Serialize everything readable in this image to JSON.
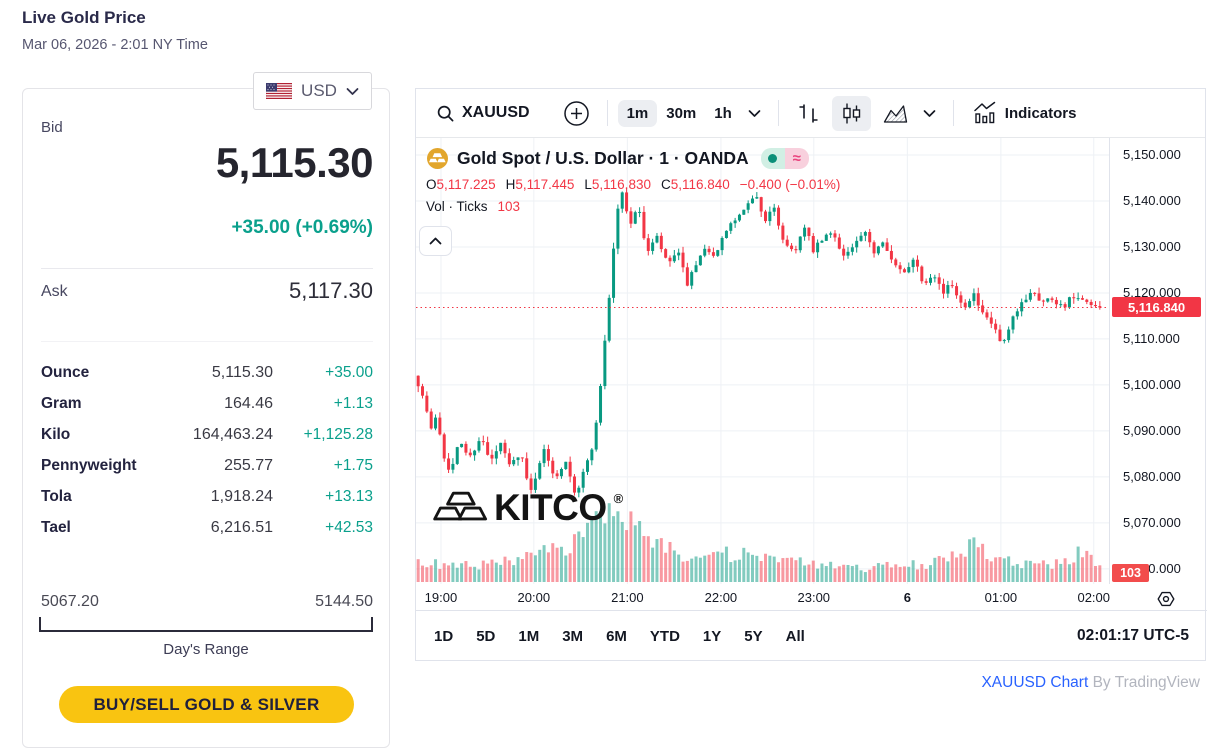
{
  "page": {
    "title": "Live Gold Price",
    "subtitle": "Mar 06, 2026 - 2:01 NY Time"
  },
  "currency": {
    "selected": "USD"
  },
  "quote": {
    "bid_label": "Bid",
    "bid": "5,115.30",
    "change": "+35.00 (+0.69%)",
    "ask_label": "Ask",
    "ask": "5,117.30",
    "units": [
      {
        "label": "Ounce",
        "value": "5,115.30",
        "change": "+35.00"
      },
      {
        "label": "Gram",
        "value": "164.46",
        "change": "+1.13"
      },
      {
        "label": "Kilo",
        "value": "164,463.24",
        "change": "+1,125.28"
      },
      {
        "label": "Pennyweight",
        "value": "255.77",
        "change": "+1.75"
      },
      {
        "label": "Tola",
        "value": "1,918.24",
        "change": "+13.13"
      },
      {
        "label": "Tael",
        "value": "6,216.51",
        "change": "+42.53"
      }
    ],
    "range": {
      "low": "5067.20",
      "high": "5144.50",
      "label": "Day's Range"
    },
    "cta": "BUY/SELL GOLD & SILVER",
    "positive_color": "#0aa08c"
  },
  "chart": {
    "toolbar": {
      "symbol": "XAUUSD",
      "intervals": [
        "1m",
        "30m",
        "1h"
      ],
      "selected_interval": "1m",
      "indicators_label": "Indicators"
    },
    "legend": {
      "title": "Gold Spot / U.S. Dollar · 1 · OANDA",
      "ohlc": [
        {
          "k": "O",
          "v": "5,117.225"
        },
        {
          "k": "H",
          "v": "5,117.445"
        },
        {
          "k": "L",
          "v": "5,116.830"
        },
        {
          "k": "C",
          "v": "5,116.840"
        }
      ],
      "change": "−0.400 (−0.01%)",
      "vol_label": "Vol · Ticks",
      "vol_value": "103"
    },
    "watermark": "KITCO",
    "price_label": "5,116.840",
    "volume_label": "103",
    "footer": {
      "ranges": [
        "1D",
        "5D",
        "1M",
        "3M",
        "6M",
        "YTD",
        "1Y",
        "5Y",
        "All"
      ],
      "clock": "02:01:17 UTC-5"
    },
    "attribution": {
      "link": "XAUUSD Chart",
      "rest": " By TradingView"
    }
  },
  "chart_data": {
    "type": "candlestick",
    "symbol": "XAUUSD",
    "exchange": "OANDA",
    "interval": "1m",
    "title": "Gold Spot / U.S. Dollar · 1 · OANDA",
    "open": 5117.225,
    "high": 5117.445,
    "low": 5116.83,
    "close": 5116.84,
    "change": -0.4,
    "change_pct": -0.01,
    "last_price": 5116.84,
    "last_volume": 103,
    "y_min": 5056.7,
    "y_max": 5153.7,
    "y_ticks": [
      "5,150.000",
      "5,140.000",
      "5,130.000",
      "5,120.000",
      "5,110.000",
      "5,100.000",
      "5,090.000",
      "5,080.000",
      "5,070.000",
      "5,060.000"
    ],
    "x_ticks": [
      {
        "label": "19:00",
        "f": 0.036
      },
      {
        "label": "20:00",
        "f": 0.17
      },
      {
        "label": "21:00",
        "f": 0.305
      },
      {
        "label": "22:00",
        "f": 0.44
      },
      {
        "label": "23:00",
        "f": 0.574
      },
      {
        "label": "6",
        "f": 0.709,
        "bold": true
      },
      {
        "label": "01:00",
        "f": 0.844
      },
      {
        "label": "02:00",
        "f": 0.978
      }
    ],
    "price_path": [
      [
        0,
        5102
      ],
      [
        0.013,
        5096
      ],
      [
        0.022,
        5090
      ],
      [
        0.03,
        5094
      ],
      [
        0.04,
        5085
      ],
      [
        0.051,
        5081
      ],
      [
        0.064,
        5088
      ],
      [
        0.078,
        5084
      ],
      [
        0.094,
        5089
      ],
      [
        0.108,
        5083
      ],
      [
        0.123,
        5087
      ],
      [
        0.138,
        5082
      ],
      [
        0.152,
        5086
      ],
      [
        0.166,
        5076
      ],
      [
        0.185,
        5086
      ],
      [
        0.203,
        5080
      ],
      [
        0.219,
        5084
      ],
      [
        0.233,
        5076
      ],
      [
        0.247,
        5082
      ],
      [
        0.261,
        5089
      ],
      [
        0.271,
        5103
      ],
      [
        0.278,
        5114
      ],
      [
        0.285,
        5124
      ],
      [
        0.292,
        5137
      ],
      [
        0.3,
        5142
      ],
      [
        0.311,
        5135
      ],
      [
        0.323,
        5139
      ],
      [
        0.337,
        5129
      ],
      [
        0.352,
        5132
      ],
      [
        0.366,
        5126
      ],
      [
        0.381,
        5129
      ],
      [
        0.395,
        5122
      ],
      [
        0.41,
        5126
      ],
      [
        0.424,
        5130
      ],
      [
        0.438,
        5128
      ],
      [
        0.453,
        5134
      ],
      [
        0.467,
        5136
      ],
      [
        0.482,
        5138
      ],
      [
        0.493,
        5142
      ],
      [
        0.508,
        5136
      ],
      [
        0.522,
        5138
      ],
      [
        0.537,
        5131
      ],
      [
        0.551,
        5129
      ],
      [
        0.566,
        5134
      ],
      [
        0.58,
        5129
      ],
      [
        0.595,
        5132
      ],
      [
        0.609,
        5133
      ],
      [
        0.624,
        5128
      ],
      [
        0.638,
        5130
      ],
      [
        0.653,
        5133
      ],
      [
        0.667,
        5129
      ],
      [
        0.682,
        5132
      ],
      [
        0.696,
        5126
      ],
      [
        0.711,
        5124
      ],
      [
        0.725,
        5128
      ],
      [
        0.74,
        5122
      ],
      [
        0.754,
        5125
      ],
      [
        0.768,
        5120
      ],
      [
        0.783,
        5122
      ],
      [
        0.797,
        5117
      ],
      [
        0.812,
        5120
      ],
      [
        0.826,
        5115
      ],
      [
        0.841,
        5113
      ],
      [
        0.855,
        5108
      ],
      [
        0.87,
        5114
      ],
      [
        0.884,
        5118
      ],
      [
        0.899,
        5121
      ],
      [
        0.913,
        5118
      ],
      [
        0.928,
        5119
      ],
      [
        0.942,
        5117
      ],
      [
        0.957,
        5119
      ],
      [
        0.971,
        5118
      ],
      [
        0.988,
        5116.8
      ],
      [
        1,
        5116.84
      ]
    ],
    "volume_path": [
      [
        0,
        0.3
      ],
      [
        0.05,
        0.22
      ],
      [
        0.1,
        0.26
      ],
      [
        0.15,
        0.3
      ],
      [
        0.19,
        0.42
      ],
      [
        0.23,
        0.6
      ],
      [
        0.26,
        0.8
      ],
      [
        0.295,
        1.0
      ],
      [
        0.32,
        0.72
      ],
      [
        0.36,
        0.5
      ],
      [
        0.41,
        0.38
      ],
      [
        0.47,
        0.4
      ],
      [
        0.53,
        0.32
      ],
      [
        0.59,
        0.24
      ],
      [
        0.65,
        0.2
      ],
      [
        0.71,
        0.24
      ],
      [
        0.77,
        0.3
      ],
      [
        0.81,
        0.58
      ],
      [
        0.84,
        0.32
      ],
      [
        0.89,
        0.26
      ],
      [
        0.93,
        0.24
      ],
      [
        0.97,
        0.44
      ],
      [
        1,
        0.22
      ]
    ],
    "colors": {
      "up": "#089981",
      "down": "#f23645",
      "grid": "#eef1f5",
      "last": "#f23645",
      "axis_text": "#131722"
    },
    "legend_position": "top-left",
    "grid": true
  }
}
